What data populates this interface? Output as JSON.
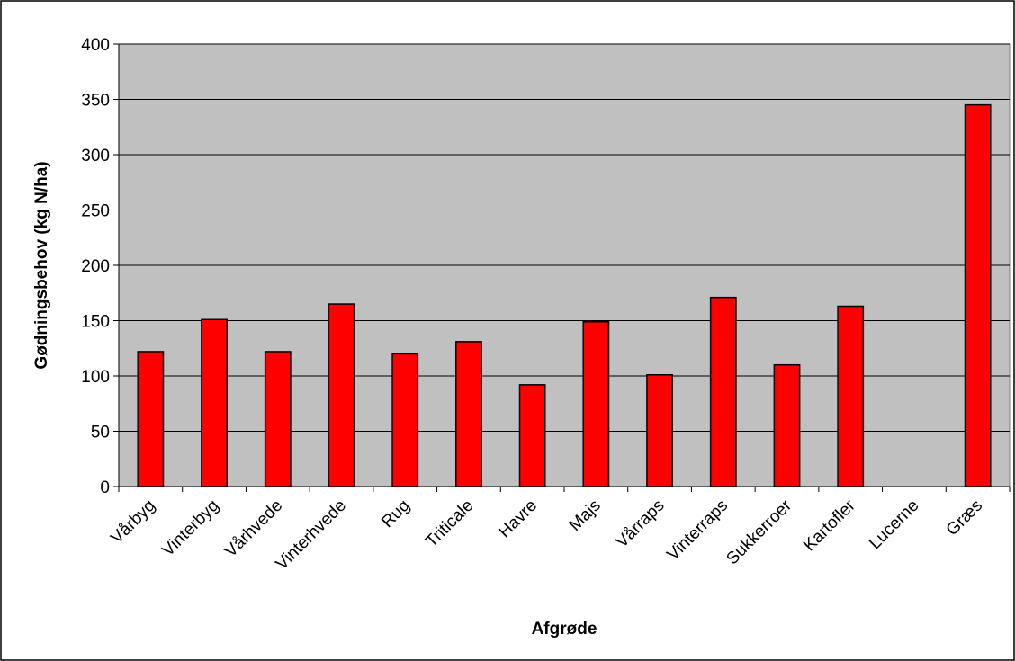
{
  "chart_data": {
    "type": "bar",
    "title": "",
    "xlabel": "Afgrøde",
    "ylabel": "Gødningsbehov (kg N/ha)",
    "ylim": [
      0,
      400
    ],
    "yticks": [
      0,
      50,
      100,
      150,
      200,
      250,
      300,
      350,
      400
    ],
    "grid": true,
    "plot_background": "#c0c0c0",
    "bar_color": "#ff0000",
    "categories": [
      "Vårbyg",
      "Vinterbyg",
      "Vårhvede",
      "Vinterhvede",
      "Rug",
      "Triticale",
      "Havre",
      "Majs",
      "Vårraps",
      "Vinterraps",
      "Sukkerroer",
      "Kartofler",
      "Lucerne",
      "Græs"
    ],
    "values": [
      122,
      151,
      122,
      165,
      120,
      131,
      92,
      149,
      101,
      171,
      110,
      163,
      0,
      345
    ]
  }
}
